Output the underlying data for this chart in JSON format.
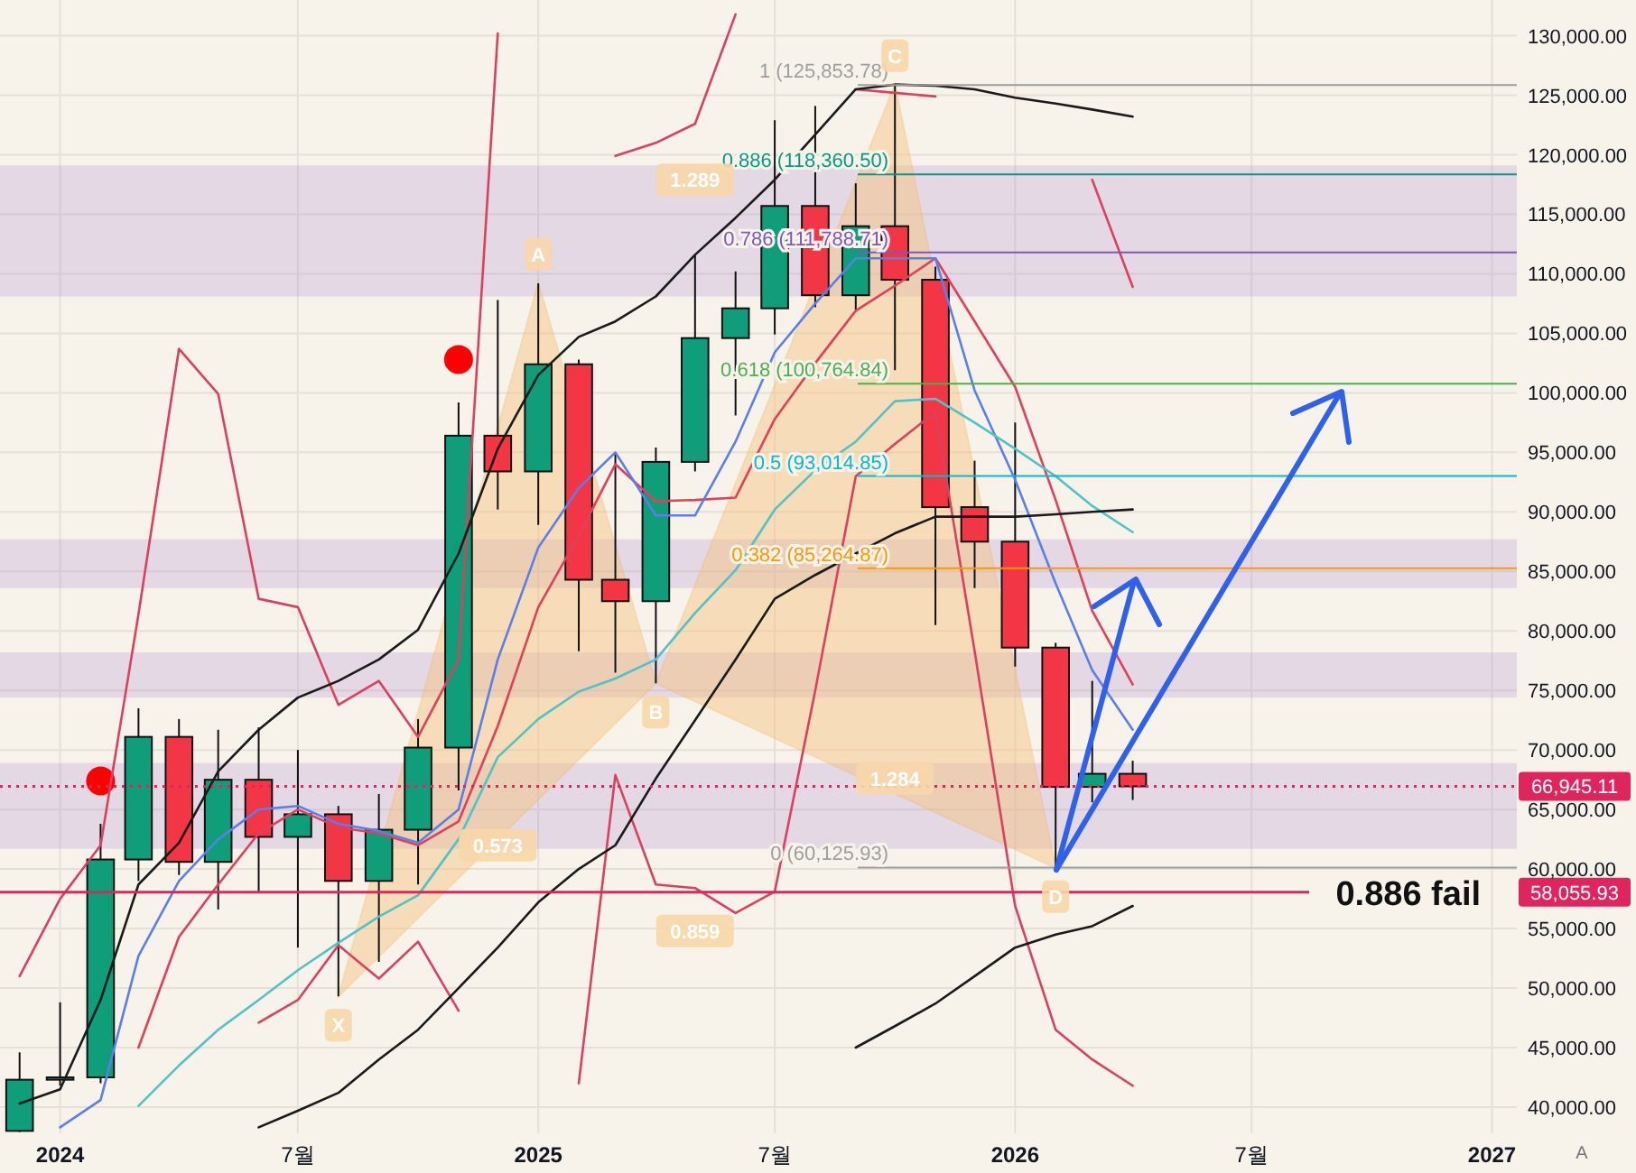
{
  "chart_data": {
    "type": "candlestick",
    "x": [
      "2023-12",
      "2024-01",
      "2024-02",
      "2024-03",
      "2024-04",
      "2024-05",
      "2024-06",
      "2024-07",
      "2024-08",
      "2024-09",
      "2024-10",
      "2024-11",
      "2024-12",
      "2025-01",
      "2025-02",
      "2025-03",
      "2025-04",
      "2025-05",
      "2025-06",
      "2025-07",
      "2025-08",
      "2025-09",
      "2025-10",
      "2025-11",
      "2025-12",
      "2026-01",
      "2026-02",
      "2026-03",
      "2026-04"
    ],
    "ohlc": [
      [
        38000,
        44600,
        37900,
        42300
      ],
      [
        42300,
        48800,
        41800,
        42500
      ],
      [
        42500,
        63800,
        42000,
        60800
      ],
      [
        60800,
        73500,
        59000,
        71100
      ],
      [
        71100,
        72600,
        59500,
        60600
      ],
      [
        60600,
        71700,
        56600,
        67500
      ],
      [
        67500,
        71900,
        58100,
        62700
      ],
      [
        62700,
        70000,
        53400,
        64600
      ],
      [
        64600,
        65300,
        49300,
        59000
      ],
      [
        59000,
        66300,
        52200,
        63300
      ],
      [
        63300,
        72600,
        58700,
        70200
      ],
      [
        70200,
        99200,
        66600,
        96400
      ],
      [
        96400,
        107800,
        90200,
        93400
      ],
      [
        93400,
        109200,
        88900,
        102400
      ],
      [
        102400,
        102800,
        78300,
        84300
      ],
      [
        84300,
        95000,
        76500,
        82500
      ],
      [
        82500,
        95400,
        75600,
        94200
      ],
      [
        94200,
        111600,
        93400,
        104600
      ],
      [
        104600,
        110200,
        98100,
        107100
      ],
      [
        107100,
        122900,
        104900,
        115700
      ],
      [
        115700,
        124100,
        107200,
        108200
      ],
      [
        108200,
        117600,
        107000,
        114000
      ],
      [
        114000,
        125900,
        101900,
        109500
      ],
      [
        109500,
        110600,
        80500,
        90400
      ],
      [
        90400,
        94300,
        83600,
        87500
      ],
      [
        87500,
        97500,
        77000,
        78600
      ],
      [
        78600,
        79000,
        60100,
        66900
      ],
      [
        66900,
        75800,
        65600,
        68000
      ],
      [
        68000,
        69100,
        65800,
        66945
      ]
    ],
    "colors": [
      "#0f9d7a",
      "#0f9d7a",
      "#0f9d7a",
      "#0f9d7a",
      "#f23645",
      "#0f9d7a",
      "#f23645",
      "#0f9d7a",
      "#f23645",
      "#0f9d7a",
      "#0f9d7a",
      "#0f9d7a",
      "#f23645",
      "#0f9d7a",
      "#f23645",
      "#f23645",
      "#0f9d7a",
      "#0f9d7a",
      "#0f9d7a",
      "#0f9d7a",
      "#f23645",
      "#0f9d7a",
      "#f23645",
      "#f23645",
      "#f23645",
      "#f23645",
      "#f23645",
      "#0f9d7a",
      "#f23645"
    ],
    "series": [
      {
        "type": "line",
        "color": "#d9415f",
        "values": [
          51000,
          57500,
          62000,
          81400,
          103700,
          99900,
          82700,
          82000,
          73800,
          75800,
          71100,
          77600,
          130200,
          null,
          null,
          119900,
          121000,
          122600,
          131800,
          null,
          null,
          125500,
          125200,
          124900,
          null,
          null,
          null,
          117900,
          108900
        ]
      },
      {
        "type": "line",
        "color": "#d9415f",
        "values": [
          null,
          null,
          null,
          null,
          null,
          null,
          47100,
          49000,
          53600,
          50800,
          53900,
          48100,
          null,
          null,
          42000,
          67900,
          58700,
          58400,
          56300,
          58100,
          75000,
          93000,
          95700,
          98400,
          78300,
          56900,
          46500,
          44000,
          41800
        ]
      },
      {
        "type": "line",
        "color": "#e0405a",
        "values": [
          null,
          null,
          null,
          45000,
          54300,
          58700,
          63000,
          65000,
          63500,
          63000,
          62000,
          64000,
          72000,
          82000,
          88000,
          94000,
          90900,
          91000,
          91200,
          97800,
          102500,
          106900,
          109000,
          111300,
          106000,
          100500,
          91000,
          81700,
          75500
        ]
      },
      {
        "type": "line",
        "color": "#5b7fe8",
        "values": [
          null,
          38300,
          40600,
          52700,
          59000,
          62500,
          65000,
          65300,
          63800,
          63200,
          62200,
          65000,
          77600,
          87000,
          92000,
          95000,
          89700,
          89700,
          95900,
          103400,
          107500,
          111300,
          111300,
          111300,
          100200,
          92700,
          84000,
          76700,
          71700
        ]
      },
      {
        "type": "line",
        "color": "#4fc3c8",
        "values": [
          null,
          null,
          null,
          40100,
          43500,
          46500,
          49000,
          51500,
          53800,
          56000,
          57800,
          62500,
          69400,
          72600,
          74900,
          76000,
          77600,
          81500,
          85100,
          90200,
          93500,
          95900,
          99300,
          99500,
          97500,
          95300,
          93000,
          90500,
          88300
        ]
      },
      {
        "type": "line",
        "color": "#1a1a1a",
        "values": [
          40300,
          41500,
          49000,
          58700,
          62200,
          68200,
          71700,
          74400,
          75800,
          77600,
          80100,
          86500,
          95300,
          101500,
          104700,
          106000,
          108100,
          111600,
          114700,
          117900,
          121700,
          125500,
          125900,
          125800,
          125500,
          124800,
          124300,
          123800,
          123200
        ]
      },
      {
        "type": "line",
        "color": "#1a1a1a",
        "values": [
          null,
          null,
          null,
          null,
          null,
          null,
          38300,
          39700,
          41200,
          44000,
          46500,
          50000,
          53400,
          57200,
          60000,
          62000,
          67600,
          72500,
          77600,
          82700,
          84700,
          86500,
          88200,
          89600,
          89600,
          89600,
          89800,
          90000,
          90200
        ]
      },
      {
        "type": "line",
        "color": "#1a1a1a",
        "values": [
          null,
          null,
          null,
          null,
          null,
          null,
          null,
          null,
          null,
          null,
          null,
          null,
          null,
          null,
          null,
          null,
          null,
          null,
          null,
          null,
          null,
          45000,
          46800,
          48700,
          51000,
          53400,
          54500,
          55200,
          56900
        ]
      },
      {
        "type": "scatter",
        "marker": "circle",
        "color": "#ff0000",
        "x": [
          "2024-02",
          "2024-11"
        ],
        "values": [
          67400,
          102800
        ]
      }
    ],
    "xlim": [
      "2023-11-16",
      "2027-01-20"
    ],
    "xticks": [
      {
        "value": "2024-01",
        "label": "2024"
      },
      {
        "value": "2024-07",
        "label": "7월"
      },
      {
        "value": "2025-01",
        "label": "2025"
      },
      {
        "value": "2025-07",
        "label": "7월"
      },
      {
        "value": "2026-01",
        "label": "2026"
      },
      {
        "value": "2026-07",
        "label": "7월"
      },
      {
        "value": "2027-01",
        "label": "2027"
      }
    ],
    "ylim": [
      37800,
      133000
    ],
    "yticks": [
      {
        "value": 40000,
        "label": "40,000.00"
      },
      {
        "value": 45000,
        "label": "45,000.00"
      },
      {
        "value": 50000,
        "label": "50,000.00"
      },
      {
        "value": 55000,
        "label": "55,000.00"
      },
      {
        "value": 60000,
        "label": "60,000.00"
      },
      {
        "value": 65000,
        "label": "65,000.00"
      },
      {
        "value": 70000,
        "label": "70,000.00"
      },
      {
        "value": 75000,
        "label": "75,000.00"
      },
      {
        "value": 80000,
        "label": "80,000.00"
      },
      {
        "value": 85000,
        "label": "85,000.00"
      },
      {
        "value": 90000,
        "label": "90,000.00"
      },
      {
        "value": 95000,
        "label": "95,000.00"
      },
      {
        "value": 100000,
        "label": "100,000.00"
      },
      {
        "value": 105000,
        "label": "105,000.00"
      },
      {
        "value": 110000,
        "label": "110,000.00"
      },
      {
        "value": 115000,
        "label": "115,000.00"
      },
      {
        "value": 120000,
        "label": "120,000.00"
      },
      {
        "value": 125000,
        "label": "125,000.00"
      },
      {
        "value": 130000,
        "label": "130,000.00"
      }
    ],
    "grid": true,
    "bands": [
      {
        "axis": "y",
        "from": 61700,
        "to": 68900,
        "color": "#9575cd"
      },
      {
        "axis": "y",
        "from": 74400,
        "to": 78200,
        "color": "#9575cd"
      },
      {
        "axis": "y",
        "from": 83600,
        "to": 87700,
        "color": "#9575cd"
      },
      {
        "axis": "y",
        "from": 108100,
        "to": 119100,
        "color": "#9575cd"
      }
    ],
    "ref_lines": [
      {
        "axis": "y",
        "value": 125853.78,
        "label": "1 (125,853.78)",
        "color": "#9e9e9e"
      },
      {
        "axis": "y",
        "value": 118360.5,
        "label": "0.886 (118,360.50)",
        "color": "#089981"
      },
      {
        "axis": "y",
        "value": 111788.71,
        "label": "0.786 (111,788.71)",
        "color": "#7e57c2"
      },
      {
        "axis": "y",
        "value": 100764.84,
        "label": "0.618 (100,764.84)",
        "color": "#4caf50"
      },
      {
        "axis": "y",
        "value": 93014.85,
        "label": "0.5 (93,014.85)",
        "color": "#00bcd4"
      },
      {
        "axis": "y",
        "value": 85264.87,
        "label": "0.382 (85,264.87)",
        "color": "#ff9800"
      },
      {
        "axis": "y",
        "value": 60125.93,
        "label": "0 (60,125.93)",
        "color": "#9e9e9e"
      },
      {
        "axis": "y",
        "value": 66945.11,
        "color": "#e0245e",
        "line_style": "dotted"
      },
      {
        "axis": "y",
        "value": 58055.93,
        "label": "0.886 fail",
        "color": "#e0245e",
        "line_style": "solid"
      }
    ],
    "annotations": [
      {
        "text": "X",
        "x": "2024-08",
        "y": 49300
      },
      {
        "text": "A",
        "x": "2025-01",
        "y": 109200
      },
      {
        "text": "B",
        "x": "2025-04",
        "y": 75600
      },
      {
        "text": "C",
        "x": "2025-10",
        "y": 125900
      },
      {
        "text": "D",
        "x": "2026-02",
        "y": 60100
      },
      {
        "text": "1.289",
        "x": "2025-05",
        "y": 117900
      },
      {
        "text": "0.573",
        "x": "2024-12",
        "y": 62000
      },
      {
        "text": "1.284",
        "x": "2025-10",
        "y": 67600
      },
      {
        "text": "0.859",
        "x": "2025-05",
        "y": 54800
      },
      "66,945.11",
      "58,055.93",
      "A"
    ]
  }
}
